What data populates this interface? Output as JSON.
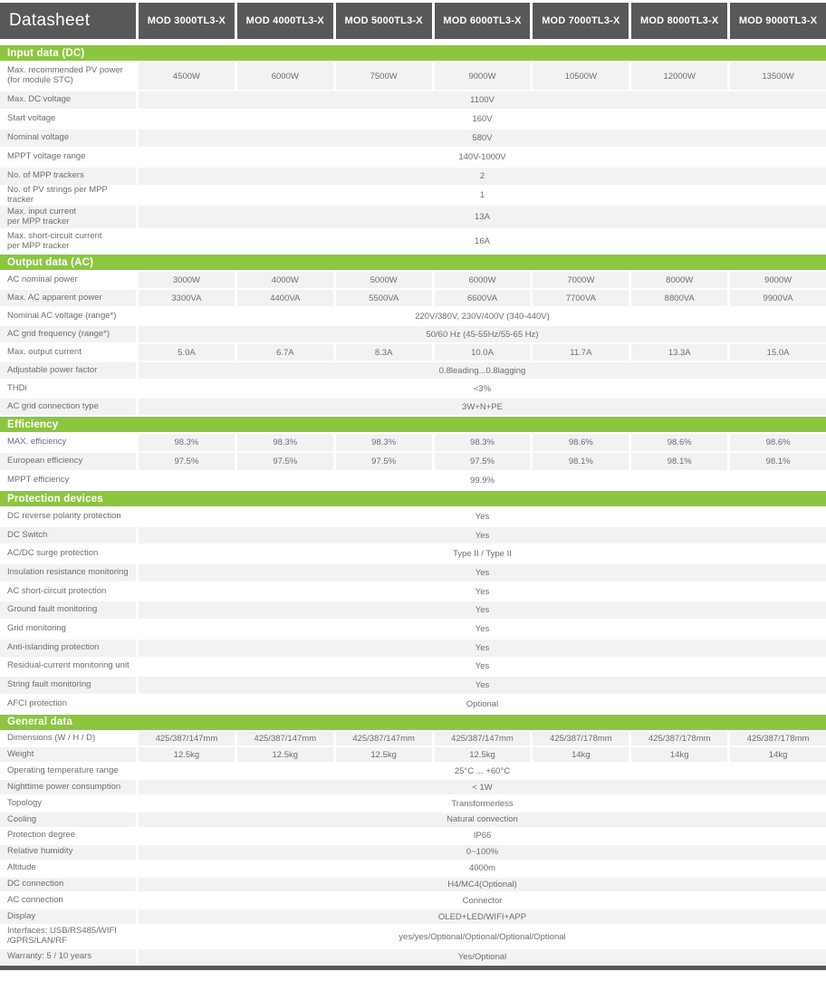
{
  "header": {
    "title": "Datasheet",
    "models": [
      "MOD 3000TL3-X",
      "MOD 4000TL3-X",
      "MOD 5000TL3-X",
      "MOD 6000TL3-X",
      "MOD 7000TL3-X",
      "MOD 8000TL3-X",
      "MOD 9000TL3-X"
    ]
  },
  "colors": {
    "accent_green": "#8cc63f",
    "header_gray": "#57585a",
    "stripe_gray": "#f2f2f3",
    "text_gray": "#6d6e71"
  },
  "sections": [
    {
      "title": "Input data (DC)",
      "rows": [
        {
          "label": "Max. recommended PV power\n(for module STC)",
          "cells": [
            "4500W",
            "6000W",
            "7500W",
            "9000W",
            "10500W",
            "12000W",
            "13500W"
          ]
        },
        {
          "label": "Max. DC voltage",
          "span": "1100V"
        },
        {
          "label": "Start voltage",
          "span": "160V"
        },
        {
          "label": "Nominal voltage",
          "span": "580V"
        },
        {
          "label": "MPPT voltage range",
          "span": "140V-1000V"
        },
        {
          "label": "No. of MPP trackers",
          "span": "2"
        },
        {
          "label": "No. of PV strings per MPP tracker",
          "span": "1"
        },
        {
          "label": "Max. input current\nper MPP tracker",
          "span": "13A"
        },
        {
          "label": "Max. short-circuit current\nper MPP tracker",
          "span": "16A"
        }
      ]
    },
    {
      "title": "Output data (AC)",
      "rows": [
        {
          "label": "AC nominal power",
          "cells": [
            "3000W",
            "4000W",
            "5000W",
            "6000W",
            "7000W",
            "8000W",
            "9000W"
          ]
        },
        {
          "label": "Max. AC apparent power",
          "cells": [
            "3300VA",
            "4400VA",
            "5500VA",
            "6600VA",
            "7700VA",
            "8800VA",
            "9900VA"
          ]
        },
        {
          "label": "Nominal AC voltage  (range*)",
          "span": "220V/380V, 230V/400V  (340-440V)"
        },
        {
          "label": "AC grid frequency  (range*)",
          "span": "50/60 Hz (45-55Hz/55-65 Hz)"
        },
        {
          "label": "Max. output current",
          "cells": [
            "5.0A",
            "6.7A",
            "8.3A",
            "10.0A",
            "11.7A",
            "13.3A",
            "15.0A"
          ]
        },
        {
          "label": "Adjustable power factor",
          "span": "0.8leading...0.8lagging"
        },
        {
          "label": "THDi",
          "span": "<3%"
        },
        {
          "label": "AC grid connection type",
          "span": "3W+N+PE"
        }
      ]
    },
    {
      "title": "Efficiency",
      "rows": [
        {
          "label": "MAX. efficiency",
          "cells": [
            "98.3%",
            "98.3%",
            "98.3%",
            "98.3%",
            "98.6%",
            "98.6%",
            "98.6%"
          ]
        },
        {
          "label": "European efficiency",
          "cells": [
            "97.5%",
            "97.5%",
            "97.5%",
            "97.5%",
            "98.1%",
            "98.1%",
            "98.1%"
          ]
        },
        {
          "label": "MPPT efficiency",
          "span": "99.9%"
        }
      ]
    },
    {
      "title": "Protection devices",
      "rows": [
        {
          "label": "DC reverse polarity protection",
          "span": "Yes"
        },
        {
          "label": "DC Switch",
          "span": "Yes"
        },
        {
          "label": "AC/DC surge protection",
          "span": "Type II / Type II"
        },
        {
          "label": "Insulation resistance monitoring",
          "span": "Yes"
        },
        {
          "label": "AC short-circuit protection",
          "span": "Yes"
        },
        {
          "label": "Ground fault monitoring",
          "span": "Yes"
        },
        {
          "label": "Grid monitoring",
          "span": "Yes"
        },
        {
          "label": "Anti-islanding  protection",
          "span": "Yes"
        },
        {
          "label": "Residual-current  monitoring unit",
          "span": "Yes"
        },
        {
          "label": "String fault monitoring",
          "span": "Yes"
        },
        {
          "label": "AFCI protection",
          "span": "Optional"
        }
      ]
    },
    {
      "title": "General data",
      "rows": [
        {
          "label": "Dimensions (W / H / D)",
          "cells": [
            "425/387/147mm",
            "425/387/147mm",
            "425/387/147mm",
            "425/387/147mm",
            "425/387/178mm",
            "425/387/178mm",
            "425/387/178mm"
          ]
        },
        {
          "label": "Weight",
          "cells": [
            "12.5kg",
            "12.5kg",
            "12.5kg",
            "12.5kg",
            "14kg",
            "14kg",
            "14kg"
          ]
        },
        {
          "label": "Operating temperature range",
          "span": "25°C ... +60°C"
        },
        {
          "label": "Nighttime power consumption",
          "span": "< 1W"
        },
        {
          "label": "Topology",
          "span": "Transformerless"
        },
        {
          "label": "Cooling",
          "span": "Natural convection"
        },
        {
          "label": "Protection degree",
          "span": "IP66"
        },
        {
          "label": "Relative humidity",
          "span": "0~100%"
        },
        {
          "label": "Altitude",
          "span": "4000m"
        },
        {
          "label": "DC connection",
          "span": "H4/MC4(Optional)"
        },
        {
          "label": "AC connection",
          "span": "Connector"
        },
        {
          "label": "Display",
          "span": "OLED+LED/WIFI+APP"
        },
        {
          "label": "Interfaces: USB/RS485/WIFI\n/GPRS/LAN/RF",
          "span": "yes/yes/Optional/Optional/Optional/Optional"
        },
        {
          "label": "Warranty: 5 / 10 years",
          "span": "Yes/Optional"
        }
      ]
    }
  ]
}
